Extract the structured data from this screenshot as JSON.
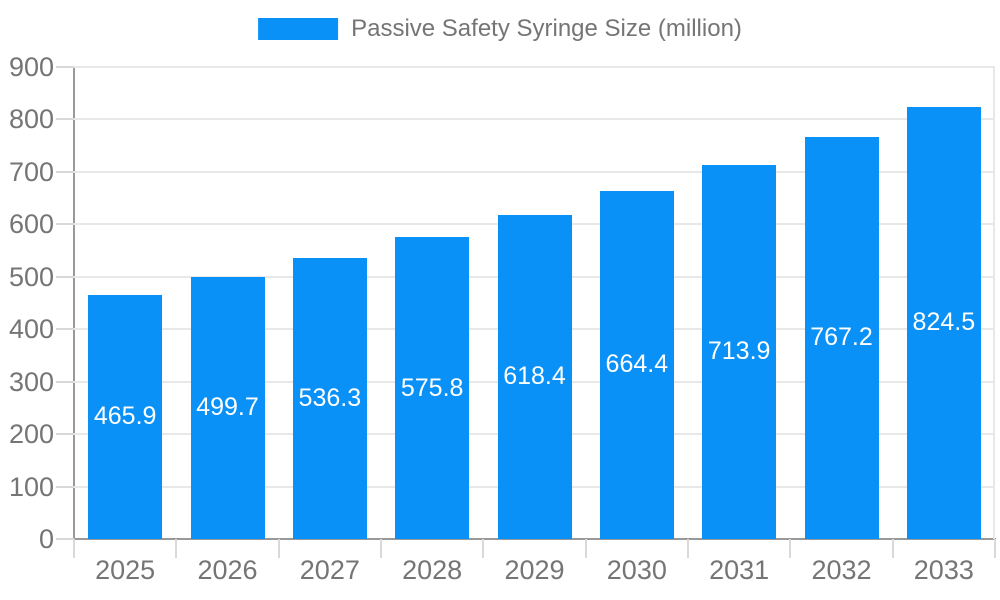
{
  "chart_data": {
    "type": "bar",
    "title": "Passive Safety Syringe Size (million)",
    "legend": {
      "label": "Passive Safety Syringe Size (million)",
      "position": "top-center"
    },
    "categories": [
      "2025",
      "2026",
      "2027",
      "2028",
      "2029",
      "2030",
      "2031",
      "2032",
      "2033"
    ],
    "series": [
      {
        "name": "Passive Safety Syringe Size (million)",
        "values": [
          465.9,
          499.7,
          536.3,
          575.8,
          618.4,
          664.4,
          713.9,
          767.2,
          824.5
        ]
      }
    ],
    "value_labels": [
      "465.9",
      "499.7",
      "536.3",
      "575.8",
      "618.4",
      "664.4",
      "713.9",
      "767.2",
      "824.5"
    ],
    "xlabel": "",
    "ylabel": "",
    "ylim": [
      0,
      900
    ],
    "yticks": [
      0,
      100,
      200,
      300,
      400,
      500,
      600,
      700,
      800,
      900
    ],
    "grid": true,
    "colors": {
      "bar": "#0a91f7",
      "value_label": "#ffffff",
      "axis_label": "#757575",
      "axis_line": "#999999",
      "gridline": "#e8e8e8",
      "tick": "#d9d9d9",
      "background": "#ffffff"
    }
  }
}
